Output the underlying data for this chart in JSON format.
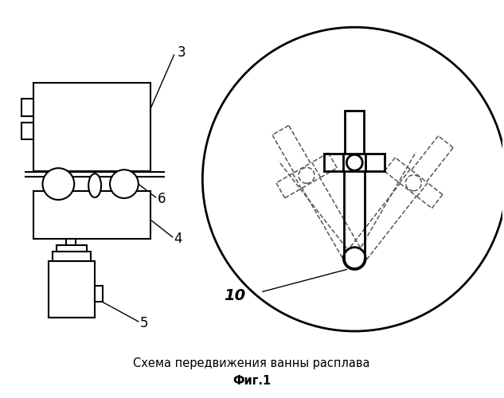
{
  "title_line1": "Схема передвижения ванны расплава",
  "title_line2": "Фиг.1",
  "bg_color": "#ffffff",
  "line_color": "#000000",
  "label_3": "3",
  "label_4": "4",
  "label_5": "5",
  "label_6": "6",
  "label_10": "10"
}
